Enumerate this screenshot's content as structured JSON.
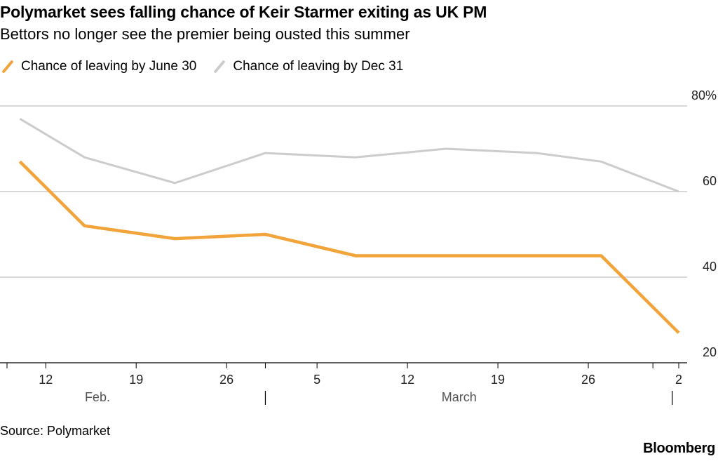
{
  "header": {
    "title": "Polymarket sees falling chance of Keir Starmer exiting as UK PM",
    "subtitle": "Bettors no longer see the premier being ousted this summer"
  },
  "colors": {
    "june": "#f2a33a",
    "dec": "#cccccc",
    "grid": "#cccccc",
    "axis": "#000000",
    "month_label": "#555555"
  },
  "chart_data": {
    "type": "line",
    "title": "Polymarket sees falling chance of Keir Starmer exiting as UK PM",
    "subtitle": "Bettors no longer see the premier being ousted this summer",
    "xlabel": "",
    "ylabel": "",
    "ylim": [
      20,
      80
    ],
    "y_ticks": [
      {
        "value": 80,
        "label": "80%"
      },
      {
        "value": 60,
        "label": "60"
      },
      {
        "value": 40,
        "label": "40"
      },
      {
        "value": 20,
        "label": "20"
      }
    ],
    "xlim": [
      0,
      53
    ],
    "x_ticks": [
      {
        "day": 3,
        "label": "12"
      },
      {
        "day": 10,
        "label": "19"
      },
      {
        "day": 17,
        "label": "26"
      },
      {
        "day": 24,
        "label": "5"
      },
      {
        "day": 31,
        "label": "12"
      },
      {
        "day": 38,
        "label": "19"
      },
      {
        "day": 45,
        "label": "26"
      },
      {
        "day": 52,
        "label": "2"
      }
    ],
    "minor_tick_days": [
      0,
      20,
      50
    ],
    "month_labels": [
      {
        "label": "Feb.",
        "center_day": 7
      },
      {
        "label": "March",
        "center_day": 35
      }
    ],
    "month_boundaries": [
      20,
      51.5
    ],
    "series": [
      {
        "name": "Chance of leaving by June 30",
        "color_key": "june",
        "points": [
          [
            1,
            67
          ],
          [
            6,
            52
          ],
          [
            13,
            49
          ],
          [
            20,
            50
          ],
          [
            27,
            45
          ],
          [
            34,
            45
          ],
          [
            41,
            45
          ],
          [
            46,
            45
          ],
          [
            52,
            27
          ]
        ]
      },
      {
        "name": "Chance of leaving by Dec 31",
        "color_key": "dec",
        "points": [
          [
            1,
            77
          ],
          [
            6,
            68
          ],
          [
            13,
            62
          ],
          [
            20,
            69
          ],
          [
            27,
            68
          ],
          [
            34,
            70
          ],
          [
            41,
            69
          ],
          [
            46,
            67
          ],
          [
            52,
            60
          ]
        ]
      }
    ]
  },
  "footer": {
    "source": "Source: Polymarket",
    "brand": "Bloomberg"
  }
}
